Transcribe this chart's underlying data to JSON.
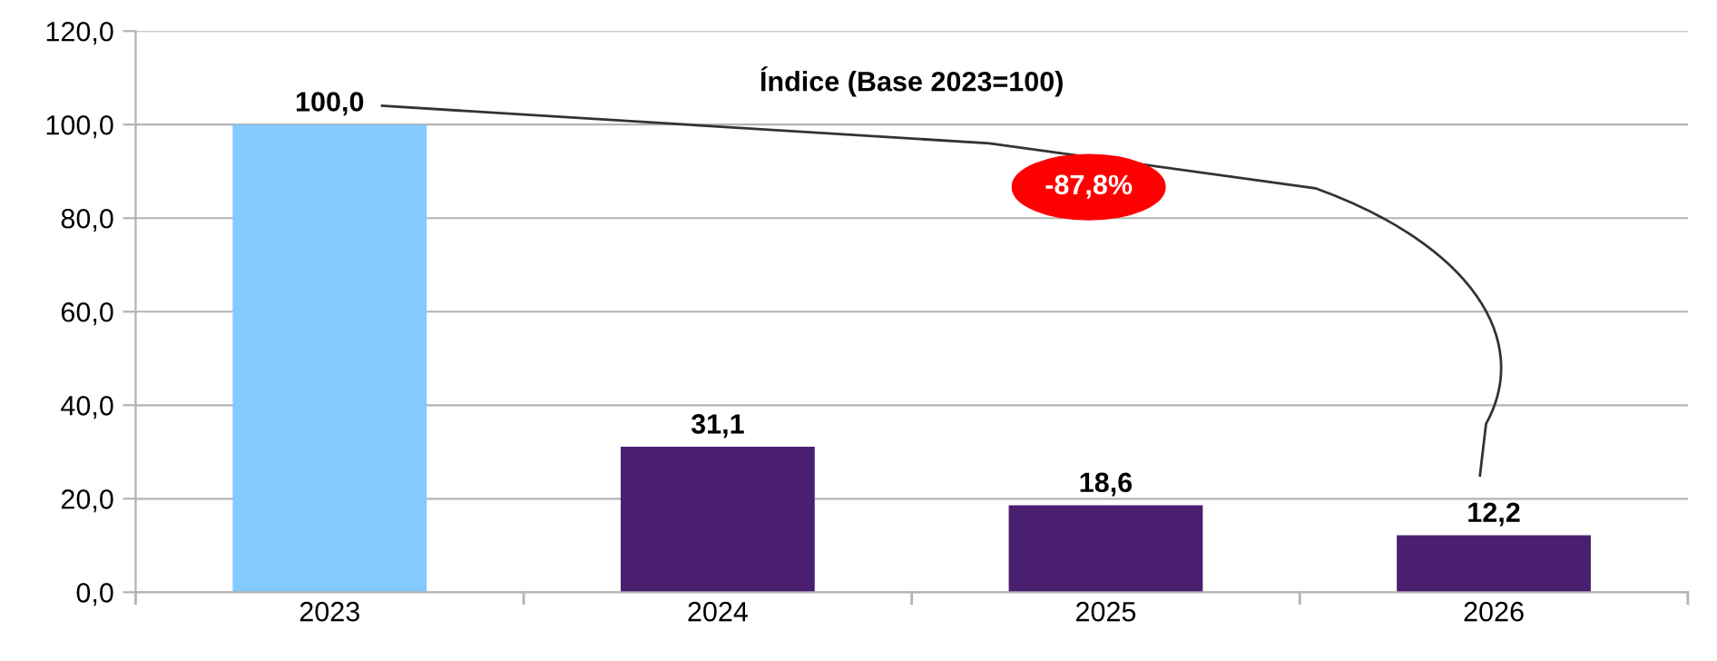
{
  "chart_data": {
    "type": "bar",
    "title": "Índice (Base 2023=100)",
    "categories": [
      "2023",
      "2024",
      "2025",
      "2026"
    ],
    "values": [
      100.0,
      31.1,
      18.6,
      12.2
    ],
    "colors": [
      "#83caff",
      "#4b1f6f",
      "#4b1f6f",
      "#4b1f6f"
    ],
    "value_labels": [
      "100,0",
      "31,1",
      "18,6",
      "12,2"
    ],
    "ylim": [
      0,
      120
    ],
    "yticks": [
      {
        "value": 0,
        "label": "0,0"
      },
      {
        "value": 20,
        "label": "20,0"
      },
      {
        "value": 40,
        "label": "40,0"
      },
      {
        "value": 60,
        "label": "60,0"
      },
      {
        "value": 80,
        "label": "80,0"
      },
      {
        "value": 100,
        "label": "100,0"
      },
      {
        "value": 120,
        "label": "120,0"
      }
    ],
    "grid": "y",
    "legend": false,
    "annotations": [
      "-87,8%"
    ]
  }
}
